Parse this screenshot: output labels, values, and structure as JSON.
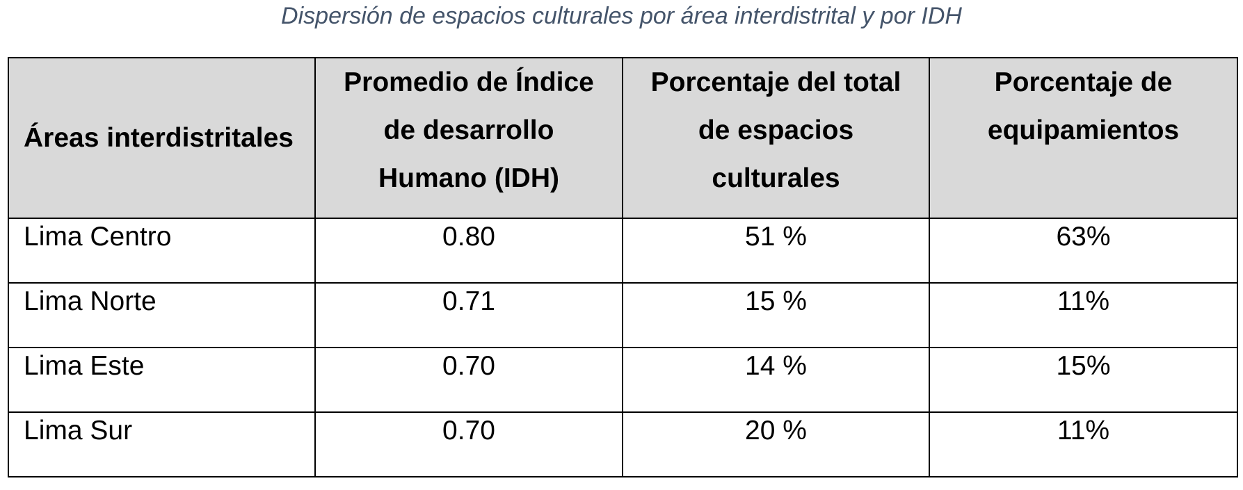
{
  "caption": "Dispersión de espacios culturales por área interdistrital y por IDH",
  "table": {
    "headers": [
      "Áreas interdistritales",
      "Promedio de Índice de desarrollo Humano (IDH)",
      "Porcentaje del total de espacios culturales",
      "Porcentaje de equipamientos"
    ],
    "rows": [
      [
        "Lima Centro",
        "0.80",
        "51 %",
        "63%"
      ],
      [
        "Lima Norte",
        "0.71",
        "15 %",
        "11%"
      ],
      [
        "Lima Este",
        "0.70",
        "14 %",
        "15%"
      ],
      [
        "Lima Sur",
        "0.70",
        "20 %",
        "11%"
      ]
    ]
  },
  "colors": {
    "caption": "#44546a",
    "header_bg": "#d9d9d9",
    "border": "#000000"
  }
}
